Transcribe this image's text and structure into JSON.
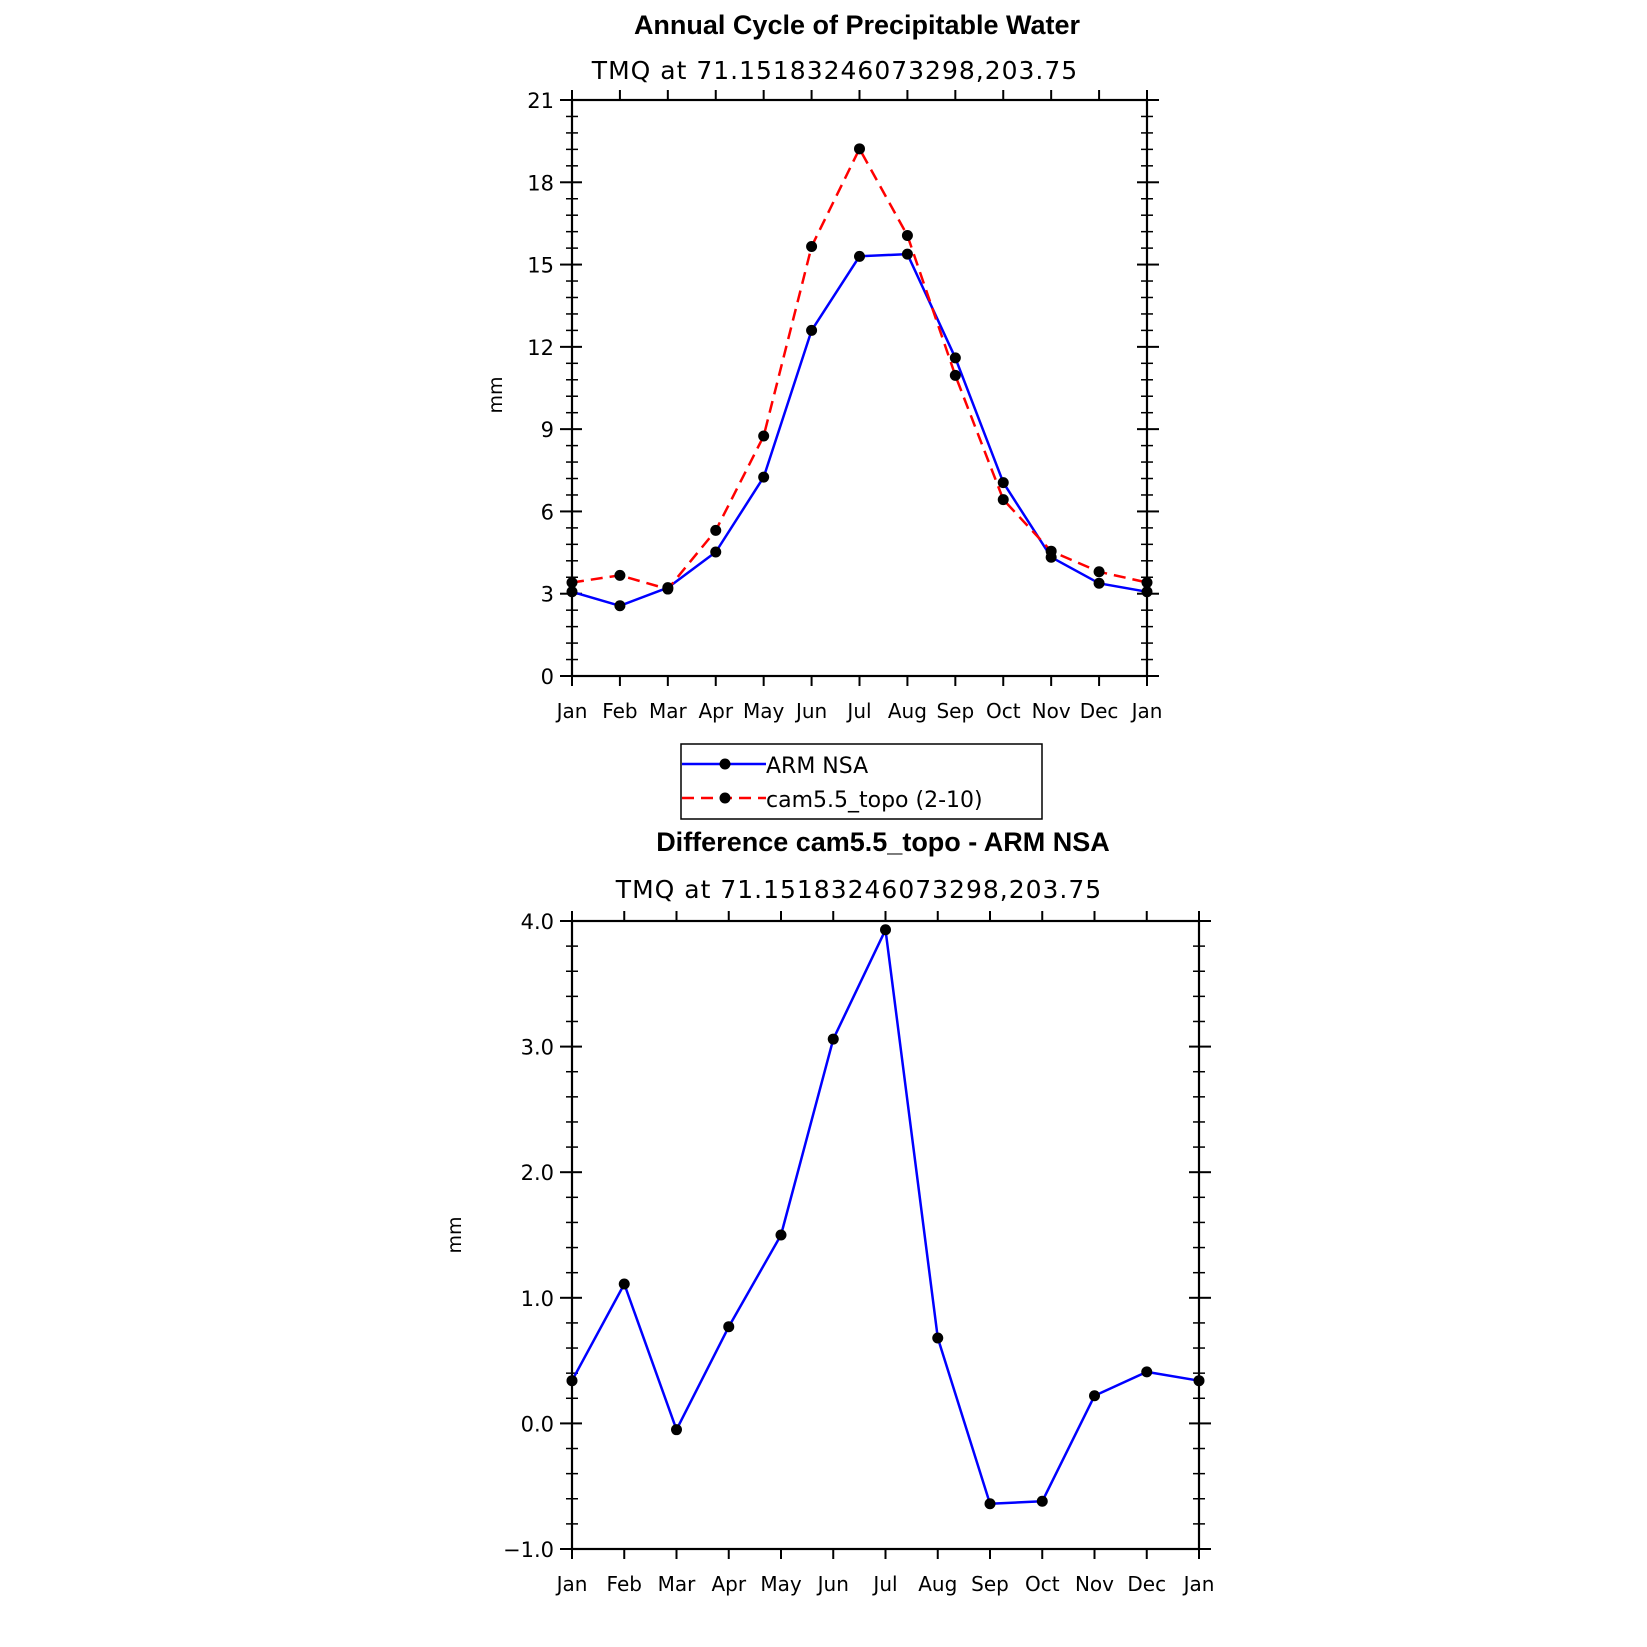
{
  "chart_data": [
    {
      "type": "line",
      "title": "Annual Cycle of Precipitable Water",
      "subtitle": "TMQ at 71.15183246073298,203.75",
      "ylabel": "mm",
      "xlabel": "",
      "categories": [
        "Jan",
        "Feb",
        "Mar",
        "Apr",
        "May",
        "Jun",
        "Jul",
        "Aug",
        "Sep",
        "Oct",
        "Nov",
        "Dec",
        "Jan"
      ],
      "ylim": [
        0,
        21
      ],
      "yticks": [
        "0",
        "3",
        "6",
        "9",
        "12",
        "15",
        "18",
        "21"
      ],
      "legend_position": "bottom",
      "grid": false,
      "series": [
        {
          "name": "ARM NSA",
          "color": "#0000ff",
          "dash": "solid",
          "values": [
            3.07,
            2.56,
            3.22,
            4.52,
            7.25,
            12.6,
            15.3,
            15.38,
            11.6,
            7.05,
            4.33,
            3.38,
            3.07
          ]
        },
        {
          "name": "cam5.5_topo (2-10)",
          "color": "#ff0000",
          "dash": "dashed",
          "values": [
            3.41,
            3.67,
            3.17,
            5.31,
            8.75,
            15.66,
            19.22,
            16.06,
            10.96,
            6.43,
            4.55,
            3.8,
            3.41
          ]
        }
      ]
    },
    {
      "type": "line",
      "title": "Difference cam5.5_topo - ARM NSA",
      "subtitle": "TMQ at 71.15183246073298,203.75",
      "ylabel": "mm",
      "xlabel": "",
      "categories": [
        "Jan",
        "Feb",
        "Mar",
        "Apr",
        "May",
        "Jun",
        "Jul",
        "Aug",
        "Sep",
        "Oct",
        "Nov",
        "Dec",
        "Jan"
      ],
      "ylim": [
        -1.0,
        4.0
      ],
      "yticks": [
        "−1.0",
        "0.0",
        "1.0",
        "2.0",
        "3.0",
        "4.0"
      ],
      "grid": false,
      "series": [
        {
          "name": "",
          "color": "#0000ff",
          "dash": "solid",
          "values": [
            0.34,
            1.11,
            -0.05,
            0.77,
            1.5,
            3.06,
            3.93,
            0.68,
            -0.64,
            -0.62,
            0.22,
            0.41,
            0.34
          ]
        }
      ]
    }
  ]
}
